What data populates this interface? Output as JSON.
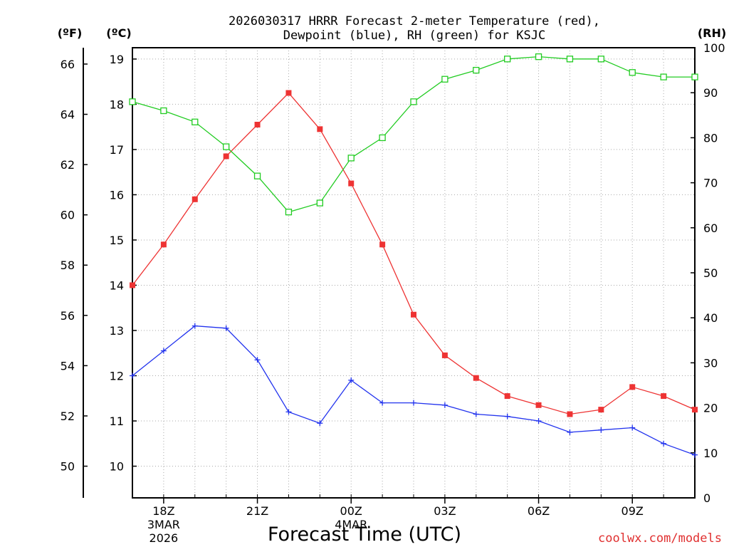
{
  "chart_data": {
    "type": "line",
    "title_line1": "2026030317 HRRR Forecast 2-meter Temperature (red),",
    "title_line2": "Dewpoint (blue), RH (green) for KSJC",
    "xlabel": "Forecast Time (UTC)",
    "watermark": "coolwx.com/models",
    "left_outer_axis_label": "(ºF)",
    "left_inner_axis_label": "(ºC)",
    "right_axis_label": "(RH)",
    "x_hours": [
      17,
      18,
      19,
      20,
      21,
      22,
      23,
      24,
      25,
      26,
      27,
      28,
      29,
      30,
      31,
      32,
      33,
      34,
      35
    ],
    "xlim": [
      17,
      35
    ],
    "x_ticks": [
      {
        "hour": 18,
        "label": "18Z",
        "sub1": "3MAR",
        "sub2": "2026"
      },
      {
        "hour": 21,
        "label": "21Z",
        "sub1": "",
        "sub2": ""
      },
      {
        "hour": 24,
        "label": "00Z",
        "sub1": "4MAR",
        "sub2": ""
      },
      {
        "hour": 27,
        "label": "03Z",
        "sub1": "",
        "sub2": ""
      },
      {
        "hour": 30,
        "label": "06Z",
        "sub1": "",
        "sub2": ""
      },
      {
        "hour": 33,
        "label": "09Z",
        "sub1": "",
        "sub2": ""
      }
    ],
    "celsius_ylim": [
      9.3,
      19.25
    ],
    "celsius_ticks": [
      10,
      11,
      12,
      13,
      14,
      15,
      16,
      17,
      18,
      19
    ],
    "fahrenheit_ticks": [
      50,
      52,
      54,
      56,
      58,
      60,
      62,
      64,
      66
    ],
    "rh_ylim": [
      0,
      100
    ],
    "rh_ticks": [
      0,
      10,
      20,
      30,
      40,
      50,
      60,
      70,
      80,
      90,
      100
    ],
    "grid": true,
    "series": [
      {
        "name": "Temperature",
        "color": "#ee3333",
        "marker": "filled-square",
        "axis": "celsius",
        "values": [
          14.0,
          14.9,
          15.9,
          16.85,
          17.55,
          18.25,
          17.45,
          16.25,
          14.9,
          13.35,
          12.45,
          11.95,
          11.55,
          11.35,
          11.15,
          11.25,
          11.75,
          11.55,
          11.25
        ]
      },
      {
        "name": "Dewpoint",
        "color": "#2233ee",
        "marker": "plus",
        "axis": "celsius",
        "values": [
          12.0,
          12.55,
          13.1,
          13.05,
          12.35,
          11.2,
          10.95,
          11.9,
          11.4,
          11.4,
          11.35,
          11.15,
          11.1,
          11.0,
          10.75,
          10.8,
          10.85,
          10.5,
          10.25
        ]
      },
      {
        "name": "RH",
        "color": "#22cc22",
        "marker": "open-square",
        "axis": "rh",
        "values": [
          88,
          86,
          83.5,
          78,
          71.5,
          63.5,
          65.5,
          75.5,
          80,
          88,
          93,
          95,
          97.5,
          98,
          97.5,
          97.5,
          94.5,
          93.5,
          93.5
        ]
      }
    ]
  }
}
